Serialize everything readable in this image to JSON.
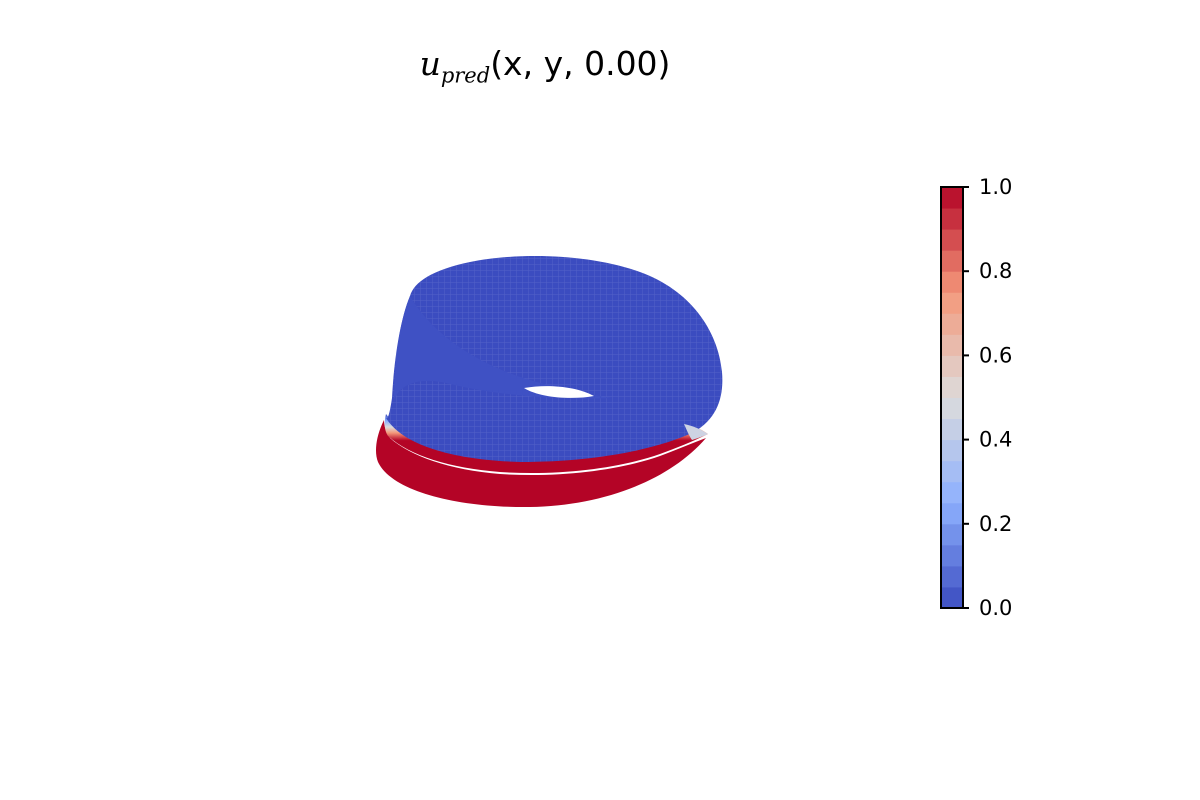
{
  "chart_data": {
    "type": "surface3d",
    "title": {
      "func": "u",
      "sub": "pred",
      "args": "(x, y, 0.00)"
    },
    "colormap": "coolwarm",
    "surface": {
      "description_values": "u = 1.0 on the lower front band of the surface, transitioning through white to u = 0.0 over the rest of the surface",
      "u_min": 0.0,
      "u_max": 1.0
    },
    "colorbar": {
      "range": [
        0.0,
        1.0
      ],
      "ticks": [
        0.0,
        0.2,
        0.4,
        0.6,
        0.8,
        1.0
      ],
      "tick_labels": [
        "0.0",
        "0.2",
        "0.4",
        "0.6",
        "0.8",
        "1.0"
      ],
      "levels": 20
    }
  }
}
